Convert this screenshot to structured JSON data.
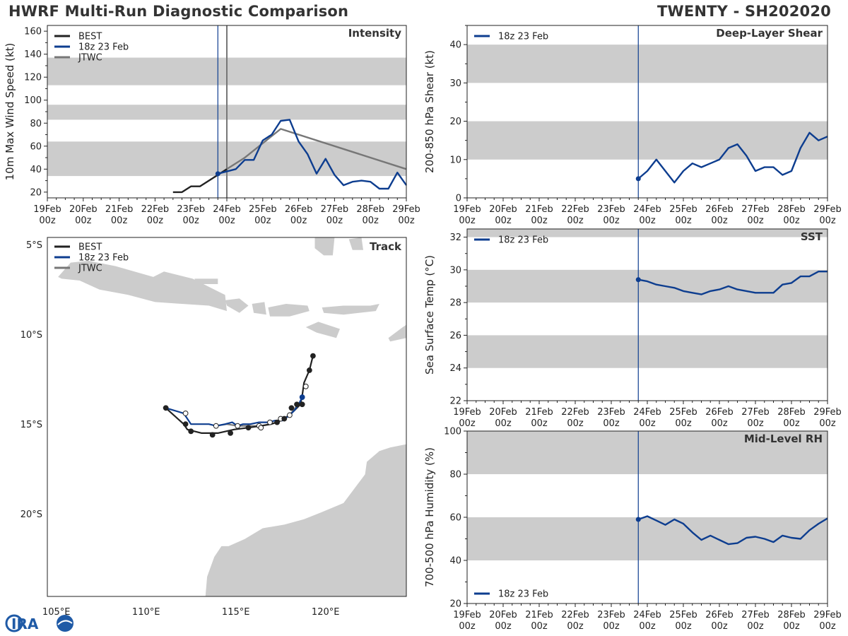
{
  "header": {
    "title_left": "HWRF Multi-Run Diagnostic Comparison",
    "title_right": "TWENTY - SH202020"
  },
  "colors": {
    "best": "#222222",
    "hwrf": "#0d3d8f",
    "jtwc": "#777777",
    "band": "#cccccc",
    "land": "#cccccc"
  },
  "time_axis": {
    "days": [
      "19Feb",
      "20Feb",
      "21Feb",
      "22Feb",
      "23Feb",
      "24Feb",
      "25Feb",
      "26Feb",
      "27Feb",
      "28Feb",
      "29Feb"
    ],
    "sublabel": "00z",
    "init_day": 4.75
  },
  "legend": {
    "best": "BEST",
    "hwrf": "18z 23 Feb",
    "jtwc": "JTWC"
  },
  "chart_data": [
    {
      "id": "intensity",
      "type": "line",
      "title": "Intensity",
      "ylabel": "10m Max Wind Speed (kt)",
      "xlim": [
        0,
        10
      ],
      "ylim": [
        15,
        165
      ],
      "yticks": [
        20,
        40,
        60,
        80,
        100,
        120,
        140,
        160
      ],
      "bands": [
        [
          34,
          64
        ],
        [
          83,
          96
        ],
        [
          113,
          137
        ]
      ],
      "series": [
        {
          "name": "BEST",
          "x": [
            3.5,
            3.75,
            4.0,
            4.25,
            4.5,
            4.75,
            5.0
          ],
          "y": [
            20,
            20,
            25,
            25,
            30,
            35,
            40
          ]
        },
        {
          "name": "18z 23 Feb",
          "x": [
            4.75,
            5.0,
            5.25,
            5.5,
            5.75,
            6.0,
            6.25,
            6.5,
            6.75,
            7.0,
            7.25,
            7.5,
            7.75,
            8.0,
            8.25,
            8.5,
            8.75,
            9.0,
            9.25,
            9.5,
            9.75,
            10.0
          ],
          "y": [
            36,
            38,
            40,
            48,
            48,
            65,
            70,
            82,
            83,
            64,
            53,
            36,
            49,
            35,
            26,
            29,
            30,
            29,
            23,
            23,
            37,
            26
          ]
        },
        {
          "name": "JTWC",
          "x": [
            5.0,
            5.5,
            6.5,
            10.0
          ],
          "y": [
            40,
            50,
            75,
            40
          ]
        }
      ],
      "vlines": [
        4.75,
        5.0
      ]
    },
    {
      "id": "shear",
      "type": "line",
      "title": "Deep-Layer Shear",
      "ylabel": "200-850 hPa Shear (kt)",
      "xlim": [
        0,
        10
      ],
      "ylim": [
        0,
        45
      ],
      "yticks": [
        0,
        10,
        20,
        30,
        40
      ],
      "bands": [
        [
          10,
          20
        ],
        [
          30,
          40
        ]
      ],
      "series": [
        {
          "name": "18z 23 Feb",
          "x": [
            4.75,
            5.0,
            5.25,
            5.5,
            5.75,
            6.0,
            6.25,
            6.5,
            6.75,
            7.0,
            7.25,
            7.5,
            7.75,
            8.0,
            8.25,
            8.5,
            8.75,
            9.0,
            9.25,
            9.5,
            9.75,
            10.0
          ],
          "y": [
            5,
            7,
            10,
            7,
            4,
            7,
            9,
            8,
            9,
            10,
            13,
            14,
            11,
            7,
            8,
            8,
            6,
            7,
            13,
            17,
            15,
            16
          ]
        }
      ],
      "vlines": [
        4.75
      ]
    },
    {
      "id": "sst",
      "type": "line",
      "title": "SST",
      "ylabel": "Sea Surface Temp (°C)",
      "xlim": [
        0,
        10
      ],
      "ylim": [
        22,
        32.5
      ],
      "yticks": [
        22,
        24,
        26,
        28,
        30,
        32
      ],
      "bands": [
        [
          24,
          26
        ],
        [
          28,
          30
        ],
        [
          32,
          34
        ]
      ],
      "series": [
        {
          "name": "18z 23 Feb",
          "x": [
            4.75,
            5.0,
            5.25,
            5.5,
            5.75,
            6.0,
            6.25,
            6.5,
            6.75,
            7.0,
            7.25,
            7.5,
            7.75,
            8.0,
            8.25,
            8.5,
            8.75,
            9.0,
            9.25,
            9.5,
            9.75,
            10.0
          ],
          "y": [
            29.4,
            29.3,
            29.1,
            29.0,
            28.9,
            28.7,
            28.6,
            28.5,
            28.7,
            28.8,
            29.0,
            28.8,
            28.7,
            28.6,
            28.6,
            28.6,
            29.1,
            29.2,
            29.6,
            29.6,
            29.9,
            29.9
          ]
        }
      ],
      "vlines": [
        4.75
      ]
    },
    {
      "id": "rh",
      "type": "line",
      "title": "Mid-Level RH",
      "ylabel": "700-500 hPa Humidity (%)",
      "xlim": [
        0,
        10
      ],
      "ylim": [
        20,
        100
      ],
      "yticks": [
        20,
        40,
        60,
        80,
        100
      ],
      "bands": [
        [
          40,
          60
        ],
        [
          80,
          100
        ]
      ],
      "series": [
        {
          "name": "18z 23 Feb",
          "x": [
            4.75,
            5.0,
            5.25,
            5.5,
            5.75,
            6.0,
            6.25,
            6.5,
            6.75,
            7.0,
            7.25,
            7.5,
            7.75,
            8.0,
            8.25,
            8.5,
            8.75,
            9.0,
            9.25,
            9.5,
            9.75,
            10.0
          ],
          "y": [
            59,
            60.5,
            58.5,
            56.5,
            59,
            57,
            53,
            49.5,
            51.5,
            49.5,
            47.5,
            48,
            50.5,
            51,
            50,
            48.5,
            51.5,
            50.5,
            50,
            54,
            57,
            59.5
          ]
        }
      ],
      "vlines": [
        4.75
      ]
    },
    {
      "id": "track",
      "type": "scatter",
      "title": "Track",
      "xlim": [
        104.5,
        124.5
      ],
      "ylim": [
        -24.6,
        -4.6
      ],
      "xticks": [
        105,
        110,
        115,
        120
      ],
      "xtick_labels": [
        "105°E",
        "110°E",
        "115°E",
        "120°E"
      ],
      "yticks": [
        -5,
        -10,
        -15,
        -20
      ],
      "ytick_labels": [
        "5°S",
        "10°S",
        "15°S",
        "20°S"
      ],
      "series": [
        {
          "name": "BEST",
          "lon": [
            119.3,
            119.1,
            118.8,
            118.7,
            118.6,
            118.4,
            118.1,
            117.7,
            117.3,
            116.9,
            116.4,
            115.7,
            114.9,
            114.0,
            113.1,
            112.3,
            112.1,
            111.1
          ],
          "lat": [
            -11.2,
            -12.0,
            -12.7,
            -13.4,
            -13.9,
            -14.1,
            -14.4,
            -14.7,
            -14.9,
            -15.0,
            -15.1,
            -15.2,
            -15.3,
            -15.5,
            -15.5,
            -15.3,
            -15.0,
            -14.1
          ],
          "markers": [
            [
              119.3,
              -11.2,
              "f"
            ],
            [
              119.1,
              -12.0,
              "f"
            ],
            [
              118.9,
              -12.9,
              "o"
            ],
            [
              118.7,
              -13.9,
              "f"
            ],
            [
              118.4,
              -13.9,
              "f"
            ],
            [
              118.1,
              -14.1,
              "f"
            ],
            [
              117.7,
              -14.7,
              "f"
            ],
            [
              117.3,
              -14.9,
              "f"
            ],
            [
              116.4,
              -15.2,
              "o"
            ],
            [
              115.7,
              -15.2,
              "f"
            ],
            [
              114.7,
              -15.5,
              "f"
            ],
            [
              113.7,
              -15.6,
              "f"
            ],
            [
              112.5,
              -15.4,
              "f"
            ],
            [
              112.2,
              -15.0,
              "f"
            ],
            [
              111.1,
              -14.1,
              "f"
            ]
          ]
        },
        {
          "name": "18z 23 Feb",
          "lon": [
            118.7,
            118.5,
            118.3,
            118.0,
            117.6,
            117.2,
            116.8,
            116.3,
            115.8,
            115.4,
            115.1,
            114.8,
            114.4,
            113.9,
            113.5,
            113.0,
            112.5,
            112.1,
            111.1
          ],
          "lat": [
            -13.5,
            -13.9,
            -14.2,
            -14.5,
            -14.8,
            -14.8,
            -14.9,
            -14.9,
            -15.0,
            -15.0,
            -15.1,
            -14.9,
            -15.0,
            -15.1,
            -15.0,
            -15.0,
            -15.0,
            -14.4,
            -14.1
          ],
          "markers": [
            [
              118.7,
              -13.5,
              "f"
            ]
          ]
        },
        {
          "name": "JTWC",
          "lon": [
            118.7,
            118.4,
            118.0,
            117.5,
            117.0,
            116.4,
            115.8,
            115.1,
            114.5,
            113.9
          ],
          "lat": [
            -13.9,
            -14.0,
            -14.5,
            -14.8,
            -15.0,
            -15.1,
            -15.1,
            -15.1,
            -15.0,
            -15.1
          ],
          "markers": [
            [
              118.0,
              -14.5,
              "o"
            ],
            [
              117.5,
              -14.7,
              "o"
            ],
            [
              116.9,
              -14.9,
              "o"
            ],
            [
              116.3,
              -15.1,
              "o"
            ],
            [
              115.1,
              -15.1,
              "o"
            ],
            [
              113.9,
              -15.1,
              "o"
            ],
            [
              112.2,
              -14.4,
              "o"
            ]
          ]
        }
      ]
    }
  ]
}
